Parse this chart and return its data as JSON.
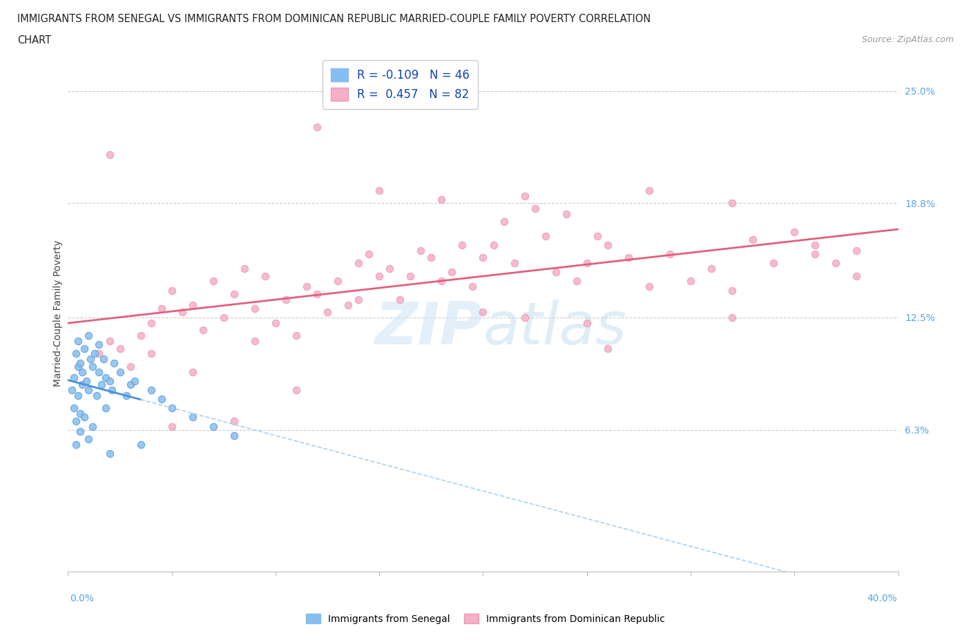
{
  "title_line1": "IMMIGRANTS FROM SENEGAL VS IMMIGRANTS FROM DOMINICAN REPUBLIC MARRIED-COUPLE FAMILY POVERTY CORRELATION",
  "title_line2": "CHART",
  "source": "Source: ZipAtlas.com",
  "ylabel": "Married-Couple Family Poverty",
  "ytick_values": [
    6.3,
    12.5,
    18.8,
    25.0
  ],
  "xlim": [
    0.0,
    40.0
  ],
  "ylim": [
    -1.5,
    27.0
  ],
  "senegal_color": "#85bef0",
  "dr_color": "#f5b0c5",
  "senegal_line_solid_color": "#4a90d9",
  "senegal_line_dash_color": "#a8d0f0",
  "dr_line_color": "#e06080",
  "R_senegal": -0.109,
  "N_senegal": 46,
  "R_dr": 0.457,
  "N_dr": 82,
  "senegal_x": [
    0.2,
    0.3,
    0.3,
    0.4,
    0.4,
    0.5,
    0.5,
    0.5,
    0.6,
    0.6,
    0.7,
    0.7,
    0.8,
    0.8,
    0.9,
    1.0,
    1.0,
    1.1,
    1.2,
    1.3,
    1.4,
    1.5,
    1.5,
    1.6,
    1.7,
    1.8,
    1.8,
    2.0,
    2.1,
    2.2,
    2.5,
    2.8,
    3.0,
    3.2,
    4.0,
    4.5,
    5.0,
    6.0,
    7.0,
    8.0,
    0.4,
    0.6,
    1.0,
    1.2,
    2.0,
    3.5
  ],
  "senegal_y": [
    8.5,
    9.2,
    7.5,
    10.5,
    6.8,
    11.2,
    9.8,
    8.2,
    10.0,
    7.2,
    9.5,
    8.8,
    10.8,
    7.0,
    9.0,
    11.5,
    8.5,
    10.2,
    9.8,
    10.5,
    8.2,
    9.5,
    11.0,
    8.8,
    10.2,
    9.2,
    7.5,
    9.0,
    8.5,
    10.0,
    9.5,
    8.2,
    8.8,
    9.0,
    8.5,
    8.0,
    7.5,
    7.0,
    6.5,
    6.0,
    5.5,
    6.2,
    5.8,
    6.5,
    5.0,
    5.5
  ],
  "dr_x": [
    1.5,
    2.0,
    2.5,
    3.0,
    3.5,
    4.0,
    4.5,
    5.0,
    5.5,
    6.0,
    6.5,
    7.0,
    7.5,
    8.0,
    8.5,
    9.0,
    9.5,
    10.0,
    10.5,
    11.0,
    11.5,
    12.0,
    12.5,
    13.0,
    13.5,
    14.0,
    14.5,
    15.0,
    15.5,
    16.0,
    16.5,
    17.0,
    17.5,
    18.0,
    18.5,
    19.0,
    19.5,
    20.0,
    20.5,
    21.0,
    21.5,
    22.0,
    22.5,
    23.0,
    23.5,
    24.0,
    24.5,
    25.0,
    25.5,
    26.0,
    27.0,
    28.0,
    29.0,
    30.0,
    31.0,
    32.0,
    33.0,
    34.0,
    35.0,
    36.0,
    37.0,
    38.0,
    2.0,
    5.0,
    8.0,
    12.0,
    15.0,
    18.0,
    22.0,
    25.0,
    28.0,
    32.0,
    36.0,
    4.0,
    9.0,
    14.0,
    20.0,
    26.0,
    32.0,
    38.0,
    6.0,
    11.0
  ],
  "dr_y": [
    10.5,
    11.2,
    10.8,
    9.8,
    11.5,
    12.2,
    13.0,
    14.0,
    12.8,
    13.2,
    11.8,
    14.5,
    12.5,
    13.8,
    15.2,
    13.0,
    14.8,
    12.2,
    13.5,
    11.5,
    14.2,
    13.8,
    12.8,
    14.5,
    13.2,
    15.5,
    16.0,
    14.8,
    15.2,
    13.5,
    14.8,
    16.2,
    15.8,
    14.5,
    15.0,
    16.5,
    14.2,
    15.8,
    16.5,
    17.8,
    15.5,
    19.2,
    18.5,
    17.0,
    15.0,
    18.2,
    14.5,
    15.5,
    17.0,
    16.5,
    15.8,
    14.2,
    16.0,
    14.5,
    15.2,
    14.0,
    16.8,
    15.5,
    17.2,
    16.0,
    15.5,
    14.8,
    21.5,
    6.5,
    6.8,
    23.0,
    19.5,
    19.0,
    12.5,
    12.2,
    19.5,
    18.8,
    16.5,
    10.5,
    11.2,
    13.5,
    12.8,
    10.8,
    12.5,
    16.2,
    9.5,
    8.5
  ]
}
